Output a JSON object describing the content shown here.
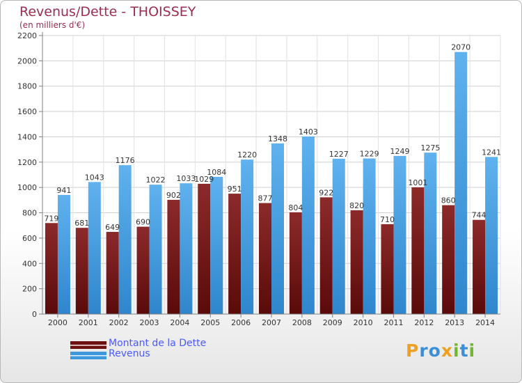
{
  "header": {
    "title": "Revenus/Dette - THOISSEY",
    "subtitle": "(en milliers d'€)"
  },
  "legend": {
    "items": [
      {
        "label": "Montant de la Dette",
        "color": "#7d1a1a"
      },
      {
        "label": "Revenus",
        "color": "#4fa6e6"
      }
    ]
  },
  "logo": {
    "letters": [
      {
        "ch": "P",
        "color": "#f0a020"
      },
      {
        "ch": "r",
        "color": "#3a8fd8"
      },
      {
        "ch": "o",
        "color": "#3a8fd8"
      },
      {
        "ch": "x",
        "color": "#f0a020"
      },
      {
        "ch": "i",
        "color": "#70b830"
      },
      {
        "ch": "t",
        "color": "#3a8fd8"
      },
      {
        "ch": "i",
        "color": "#70b830"
      }
    ]
  },
  "chart_data": {
    "type": "bar",
    "title": "Revenus/Dette - THOISSEY",
    "ylabel": "(en milliers d'€)",
    "xlabel": "",
    "categories": [
      "2000",
      "2001",
      "2002",
      "2003",
      "2004",
      "2005",
      "2006",
      "2007",
      "2008",
      "2009",
      "2010",
      "2011",
      "2012",
      "2013",
      "2014"
    ],
    "series": [
      {
        "name": "Montant de la Dette",
        "color": "#7d1a1a",
        "values": [
          719,
          681,
          649,
          690,
          902,
          1029,
          951,
          877,
          804,
          922,
          820,
          710,
          1001,
          860,
          744
        ],
        "labels": [
          "719",
          "681",
          "649",
          "690",
          "902",
          "1029",
          "951",
          "877",
          "804",
          "922",
          "820",
          "710",
          "1001",
          "860",
          "744"
        ]
      },
      {
        "name": "Revenus",
        "color": "#4fa6e6",
        "values": [
          941,
          1043,
          1176,
          1022,
          1033,
          1084,
          1220,
          1348,
          1403,
          1227,
          1229,
          1249,
          1275,
          2070,
          1241
        ],
        "labels": [
          "941",
          "1043",
          "1176",
          "1022",
          "1033",
          "1084",
          "1220",
          "1348",
          "1403",
          "1227",
          "1229",
          "1249",
          "1275",
          "2070",
          "1241"
        ]
      }
    ],
    "yticks": [
      0,
      200,
      400,
      600,
      800,
      1000,
      1200,
      1400,
      1600,
      1800,
      2000,
      2200
    ],
    "ylim": [
      0,
      2200
    ],
    "grid": true,
    "legend_position": "bottom-left"
  }
}
